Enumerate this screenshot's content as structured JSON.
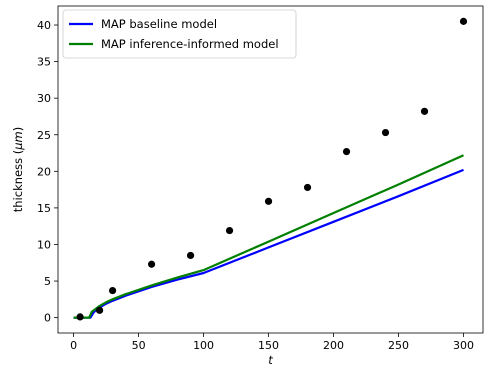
{
  "chart_data": {
    "type": "line",
    "xlabel": "t",
    "ylabel_prefix": "thickness  (",
    "ylabel_unit": "μm",
    "ylabel_suffix": ")",
    "xlim": [
      -12,
      315
    ],
    "ylim": [
      -2.1,
      42.6
    ],
    "xticks": [
      0,
      50,
      100,
      150,
      200,
      250,
      300
    ],
    "yticks": [
      0,
      5,
      10,
      15,
      20,
      25,
      30,
      35,
      40
    ],
    "grid": false,
    "legend_position": "top-left",
    "series": [
      {
        "name": "MAP baseline model",
        "color": "#0000ff",
        "kind": "line",
        "x": [
          0,
          13,
          15,
          17,
          20,
          25,
          30,
          40,
          60,
          80,
          100,
          150,
          200,
          250,
          300
        ],
        "y": [
          0,
          0,
          0.6,
          1.0,
          1.4,
          1.9,
          2.3,
          3.0,
          4.2,
          5.2,
          6.1,
          9.6,
          13.1,
          16.6,
          20.2
        ]
      },
      {
        "name": "MAP inference-informed model",
        "color": "#008000",
        "kind": "line",
        "x": [
          0,
          12,
          14,
          17,
          20,
          25,
          30,
          40,
          60,
          80,
          100,
          150,
          200,
          250,
          300
        ],
        "y": [
          0,
          0,
          0.8,
          1.2,
          1.6,
          2.1,
          2.5,
          3.2,
          4.4,
          5.5,
          6.5,
          10.4,
          14.3,
          18.2,
          22.2
        ]
      },
      {
        "name": "",
        "color": "#000000",
        "kind": "scatter",
        "x": [
          5,
          20,
          30,
          60,
          90,
          120,
          150,
          180,
          210,
          240,
          270,
          300
        ],
        "y": [
          0.1,
          1.0,
          3.7,
          7.3,
          8.5,
          11.9,
          15.9,
          17.8,
          22.7,
          25.3,
          28.2,
          40.5
        ]
      }
    ]
  }
}
